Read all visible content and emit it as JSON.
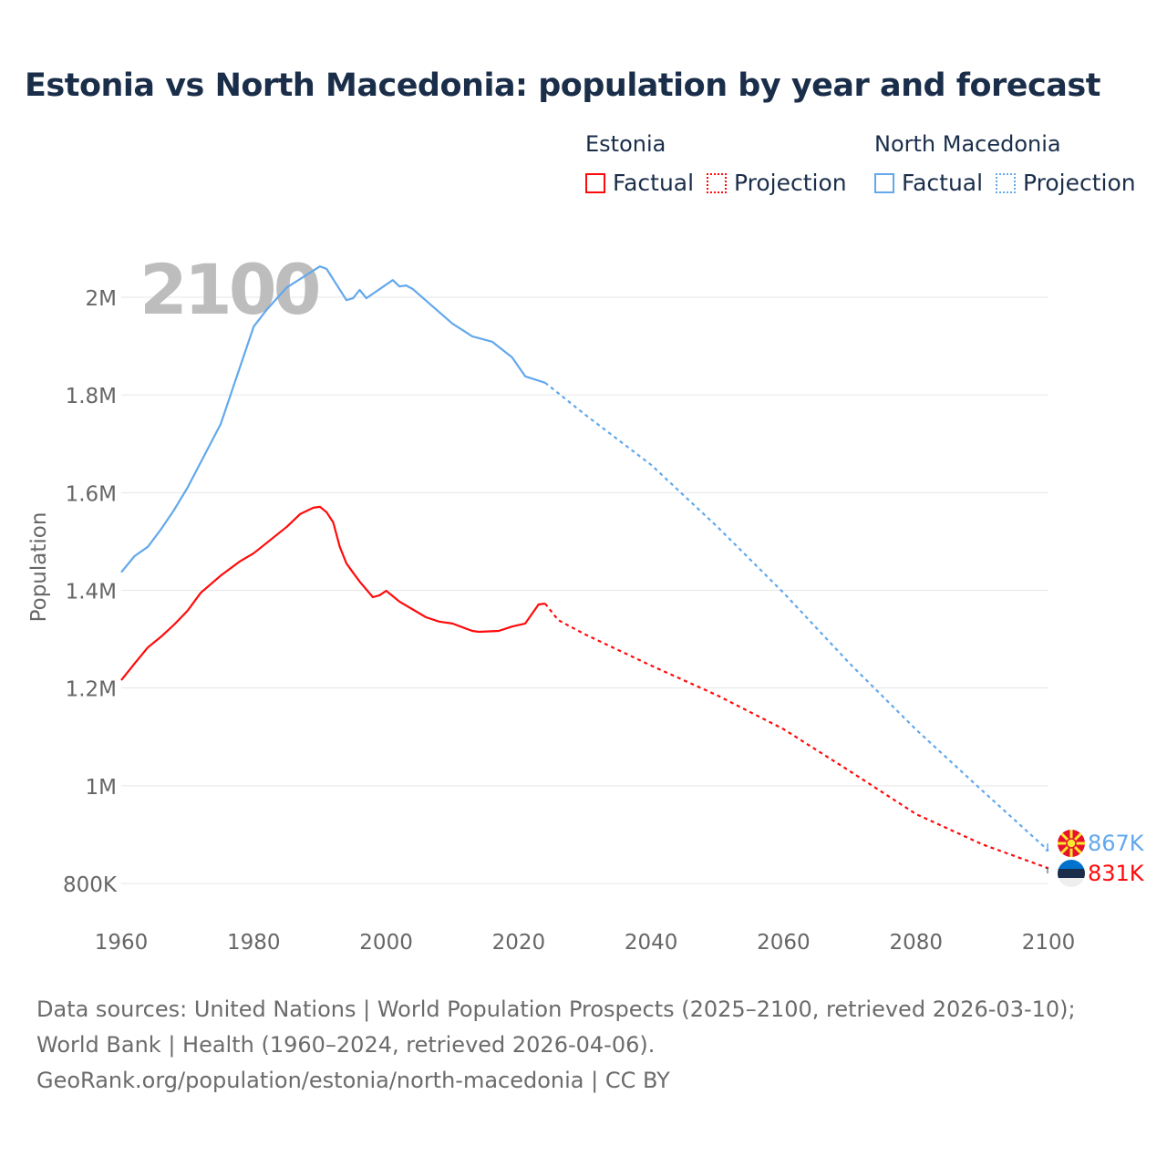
{
  "title": "Estonia vs North Macedonia: population by year and forecast",
  "legend": {
    "groups": [
      {
        "name": "Estonia",
        "color": "#ff0a0a",
        "factual": "Factual",
        "projection": "Projection"
      },
      {
        "name": "North Macedonia",
        "color": "#62a8ec",
        "factual": "Factual",
        "projection": "Projection"
      }
    ]
  },
  "footer": {
    "sources": "Data sources: United Nations | World Population Prospects (2025–2100, retrieved 2026-03-10); World Bank | Health (1960–2024, retrieved 2026-04-06).",
    "link": "GeoRank.org/population/estonia/north-macedonia | CC BY"
  },
  "chart_data": {
    "type": "line",
    "title": "Estonia vs North Macedonia: population by year and forecast",
    "ylabel": "Population",
    "xlabel": "",
    "year_label": "2100",
    "xlim": [
      1960,
      2100
    ],
    "ylim": [
      800000,
      2000000
    ],
    "xticks": [
      1960,
      1980,
      2000,
      2020,
      2040,
      2060,
      2080,
      2100
    ],
    "xtick_labels": [
      "1960",
      "1980",
      "2000",
      "2020",
      "2040",
      "2060",
      "2080",
      "2100"
    ],
    "yticks": [
      800000,
      1000000,
      1200000,
      1400000,
      1600000,
      1800000,
      2000000
    ],
    "ytick_labels": [
      "800K",
      "1M",
      "1.2M",
      "1.4M",
      "1.6M",
      "1.8M",
      "2M"
    ],
    "grid": true,
    "legend_position": "top-right",
    "series": [
      {
        "name": "Estonia",
        "color": "#ff0a0a",
        "end_label": "831K",
        "factual": {
          "x": [
            1960,
            1962,
            1964,
            1966,
            1968,
            1970,
            1972,
            1975,
            1978,
            1980,
            1985,
            1987,
            1989,
            1990,
            1991,
            1992,
            1993,
            1994,
            1995,
            1996,
            1998,
            1999,
            2000,
            2002,
            2006,
            2008,
            2010,
            2013,
            2014,
            2017,
            2019,
            2021,
            2023,
            2024
          ],
          "y": [
            1216000,
            1250000,
            1283000,
            1305000,
            1330000,
            1358000,
            1395000,
            1430000,
            1460000,
            1476000,
            1530000,
            1556000,
            1569000,
            1571000,
            1560000,
            1539000,
            1489000,
            1455000,
            1436000,
            1418000,
            1386000,
            1390000,
            1399000,
            1377000,
            1345000,
            1336000,
            1332000,
            1317000,
            1315000,
            1317000,
            1326000,
            1332000,
            1371000,
            1373000
          ]
        },
        "projection": {
          "x": [
            2024,
            2026,
            2030,
            2040,
            2050,
            2060,
            2070,
            2080,
            2090,
            2100
          ],
          "y": [
            1373000,
            1339000,
            1310000,
            1246000,
            1185000,
            1116000,
            1030000,
            942000,
            880000,
            831000
          ]
        }
      },
      {
        "name": "North Macedonia",
        "color": "#62a8ec",
        "end_label": "867K",
        "factual": {
          "x": [
            1960,
            1962,
            1964,
            1966,
            1968,
            1970,
            1975,
            1980,
            1982,
            1985,
            1990,
            1991,
            1994,
            1995,
            1996,
            1997,
            2001,
            2002,
            2003,
            2004,
            2010,
            2013,
            2016,
            2019,
            2021,
            2024
          ],
          "y": [
            1437000,
            1470000,
            1489000,
            1525000,
            1565000,
            1610000,
            1740000,
            1940000,
            1975000,
            2020000,
            2063000,
            2058000,
            1994000,
            1998000,
            2015000,
            1998000,
            2035000,
            2022000,
            2024000,
            2017000,
            1946000,
            1920000,
            1909000,
            1877000,
            1838000,
            1825000
          ]
        },
        "projection": {
          "x": [
            2024,
            2030,
            2040,
            2050,
            2060,
            2070,
            2080,
            2090,
            2100
          ],
          "y": [
            1825000,
            1760000,
            1657000,
            1530000,
            1395000,
            1250000,
            1115000,
            990000,
            867000
          ]
        }
      }
    ]
  }
}
